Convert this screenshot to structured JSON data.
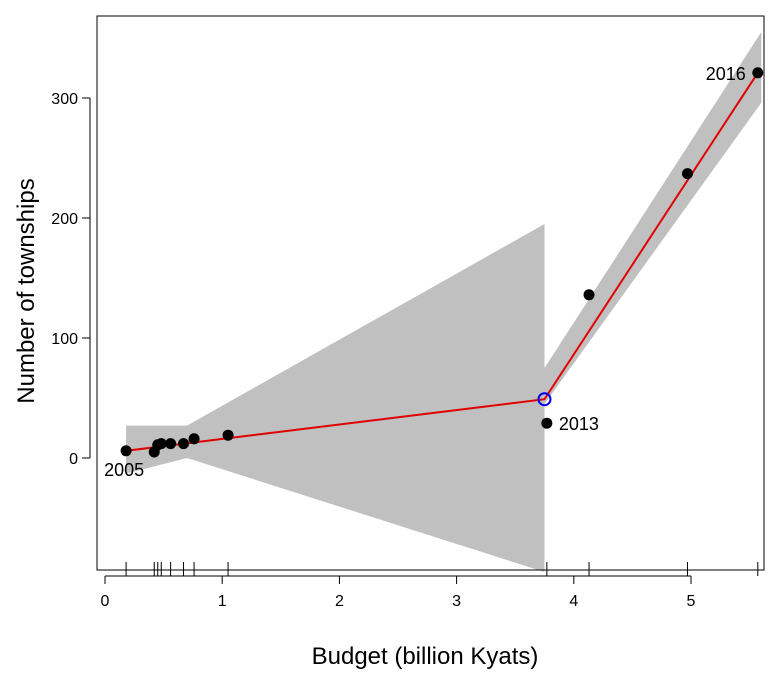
{
  "chart_data": {
    "type": "scatter",
    "title": "",
    "xlabel": "Budget (billion Kyats)",
    "ylabel": "Number of townships",
    "xlim": [
      0,
      5.7
    ],
    "ylim": [
      -95,
      360
    ],
    "x_ticks": [
      0,
      1,
      2,
      3,
      4,
      5
    ],
    "y_ticks": [
      0,
      100,
      200,
      300
    ],
    "grid": false,
    "points": [
      {
        "x": 0.18,
        "y": 6
      },
      {
        "x": 0.42,
        "y": 5
      },
      {
        "x": 0.45,
        "y": 11
      },
      {
        "x": 0.48,
        "y": 12
      },
      {
        "x": 0.56,
        "y": 12
      },
      {
        "x": 0.67,
        "y": 12
      },
      {
        "x": 0.76,
        "y": 16
      },
      {
        "x": 1.05,
        "y": 19
      },
      {
        "x": 3.77,
        "y": 29
      },
      {
        "x": 4.13,
        "y": 136
      },
      {
        "x": 4.97,
        "y": 237
      },
      {
        "x": 5.57,
        "y": 321
      }
    ],
    "rug_x": [
      0.18,
      0.42,
      0.45,
      0.48,
      0.56,
      0.67,
      0.76,
      1.05,
      3.77,
      4.13,
      4.97,
      5.57
    ],
    "fit_line": [
      {
        "x": 0.18,
        "y": 6
      },
      {
        "x": 3.75,
        "y": 49
      },
      {
        "x": 5.57,
        "y": 321
      }
    ],
    "breakpoint": {
      "x": 3.75,
      "y": 49
    },
    "ci_band_left": {
      "upper": [
        {
          "x": 0.18,
          "y": 27
        },
        {
          "x": 0.7,
          "y": 27
        },
        {
          "x": 3.75,
          "y": 195
        }
      ],
      "lower": [
        {
          "x": 0.18,
          "y": -13
        },
        {
          "x": 0.7,
          "y": 0
        },
        {
          "x": 3.75,
          "y": -95
        }
      ]
    },
    "ci_band_right": {
      "upper": [
        {
          "x": 3.75,
          "y": 75
        },
        {
          "x": 5.6,
          "y": 355
        }
      ],
      "lower": [
        {
          "x": 3.75,
          "y": 45
        },
        {
          "x": 5.6,
          "y": 296
        }
      ]
    },
    "annotations": [
      {
        "text": "2005",
        "x": 0.18,
        "y": 6,
        "position": "below-left"
      },
      {
        "text": "2013",
        "x": 3.77,
        "y": 29,
        "position": "right"
      },
      {
        "text": "2016",
        "x": 5.57,
        "y": 321,
        "position": "left"
      }
    ],
    "colors": {
      "points": "#000000",
      "fit_line": "#e00000",
      "ci_band": "#c0c0c0",
      "breakpoint": "#0000ee"
    }
  }
}
